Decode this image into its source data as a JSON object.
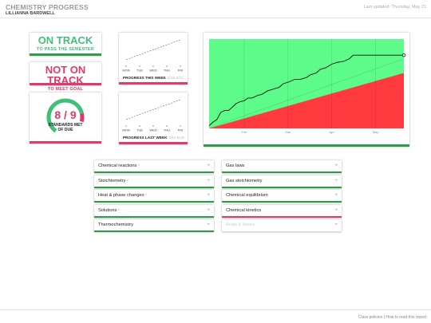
{
  "header": {
    "title": "CHEMISTRY PROGRESS",
    "student": "LILLIANNA BARDWELL",
    "last_updated": "Last updated: Thursday, May 21"
  },
  "status": {
    "on_track": {
      "main": "ON TRACK",
      "sub": "TO PASS THE SEMESTER"
    },
    "not_on_track": {
      "main": "NOT ON TRACK",
      "sub": "TO MEET GOAL"
    }
  },
  "gauge": {
    "value": "8 / 9",
    "caption_line1": "STANDARDS MET",
    "caption_line2": "OF DUE",
    "met": 8,
    "due": 9
  },
  "colors": {
    "green": "#2e9e46",
    "gauge_green": "#3fbf77",
    "pink": "#e0396a",
    "chart_green": "#5dfc8a",
    "chart_red": "#ff3a3f"
  },
  "week_charts": [
    {
      "title": "PROGRESS THIS WEEK",
      "date": "5/18-5/22",
      "days": [
        "MON",
        "TUE",
        "WED",
        "THU",
        "FRI"
      ],
      "values": [
        1,
        2,
        3,
        4,
        5
      ]
    },
    {
      "title": "PROGRESS LAST WEEK",
      "date": "5/11-5/15",
      "days": [
        "MON",
        "TUE",
        "WED",
        "THU",
        "FRI"
      ],
      "values": [
        1,
        2,
        3,
        4,
        5
      ]
    }
  ],
  "chart_data": {
    "type": "area",
    "title": "",
    "xlabel": "",
    "ylabel": "",
    "x_ticks": [
      "Feb",
      "Mar",
      "Apr",
      "May"
    ],
    "grid": true,
    "progress_line": [
      [
        0,
        0.03
      ],
      [
        0.02,
        0.07
      ],
      [
        0.04,
        0.1
      ],
      [
        0.06,
        0.18
      ],
      [
        0.08,
        0.2
      ],
      [
        0.1,
        0.2
      ],
      [
        0.12,
        0.24
      ],
      [
        0.14,
        0.28
      ],
      [
        0.16,
        0.3
      ],
      [
        0.18,
        0.31
      ],
      [
        0.2,
        0.34
      ],
      [
        0.22,
        0.34
      ],
      [
        0.25,
        0.37
      ],
      [
        0.27,
        0.38
      ],
      [
        0.3,
        0.42
      ],
      [
        0.33,
        0.44
      ],
      [
        0.36,
        0.46
      ],
      [
        0.38,
        0.5
      ],
      [
        0.41,
        0.52
      ],
      [
        0.44,
        0.55
      ],
      [
        0.47,
        0.55
      ],
      [
        0.5,
        0.57
      ],
      [
        0.52,
        0.6
      ],
      [
        0.55,
        0.62
      ],
      [
        0.57,
        0.66
      ],
      [
        0.6,
        0.68
      ],
      [
        0.63,
        0.72
      ],
      [
        0.66,
        0.74
      ],
      [
        0.69,
        0.75
      ],
      [
        0.72,
        0.78
      ],
      [
        0.74,
        0.82
      ],
      [
        0.76,
        0.82
      ],
      [
        1,
        0.82
      ]
    ],
    "pass_boundary": [
      [
        0,
        0
      ],
      [
        1,
        0.62
      ]
    ],
    "goal_line": [
      [
        0,
        0
      ],
      [
        1,
        0.78
      ]
    ]
  },
  "units_left": [
    {
      "label": "Chemical reactions",
      "mark": "✓",
      "border": "green"
    },
    {
      "label": "Stoichiometry",
      "mark": "✓",
      "border": "green"
    },
    {
      "label": "Heat & phase changes",
      "mark": "✓",
      "border": "green"
    },
    {
      "label": "Solutions",
      "mark": "✓",
      "border": "green"
    },
    {
      "label": "Thermochemistry",
      "mark": "",
      "border": "green"
    }
  ],
  "units_right": [
    {
      "label": "Gas laws",
      "mark": "",
      "border": "green"
    },
    {
      "label": "Gas stoichiometry",
      "mark": "",
      "border": "green"
    },
    {
      "label": "Chemical equilibrium",
      "mark": "",
      "border": "green"
    },
    {
      "label": "Chemical kinetics",
      "mark": "",
      "border": "red"
    },
    {
      "label": "Acids & bases",
      "mark": "",
      "border": "none",
      "muted": true
    }
  ],
  "expand_symbol": "+",
  "footer": {
    "class_policies": "Class policies",
    "separator": "|",
    "how_to_read": "How to read this report"
  }
}
